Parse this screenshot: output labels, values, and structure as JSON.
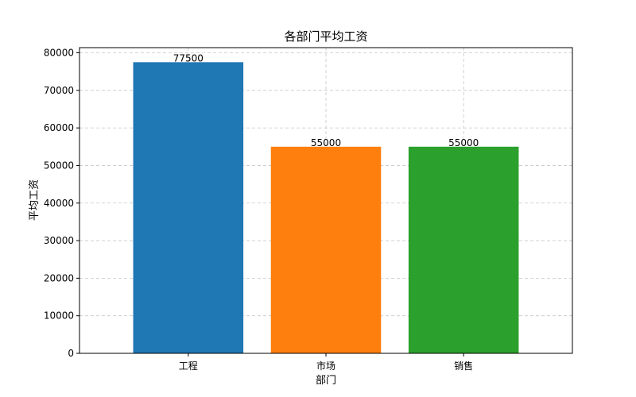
{
  "chart_data": {
    "type": "bar",
    "title": "各部门平均工资",
    "xlabel": "部门",
    "ylabel": "平均工资",
    "categories": [
      "工程",
      "市场",
      "销售"
    ],
    "values": [
      77500,
      55000,
      55000
    ],
    "data_labels": [
      "77500",
      "55000",
      "55000"
    ],
    "colors": [
      "#1f77b4",
      "#ff7f0e",
      "#2ca02c"
    ],
    "ylim": [
      0,
      81375
    ],
    "yticks": [
      0,
      10000,
      20000,
      30000,
      40000,
      50000,
      60000,
      70000,
      80000
    ],
    "ytick_labels": [
      "0",
      "10000",
      "20000",
      "30000",
      "40000",
      "50000",
      "60000",
      "70000",
      "80000"
    ],
    "grid": true
  }
}
